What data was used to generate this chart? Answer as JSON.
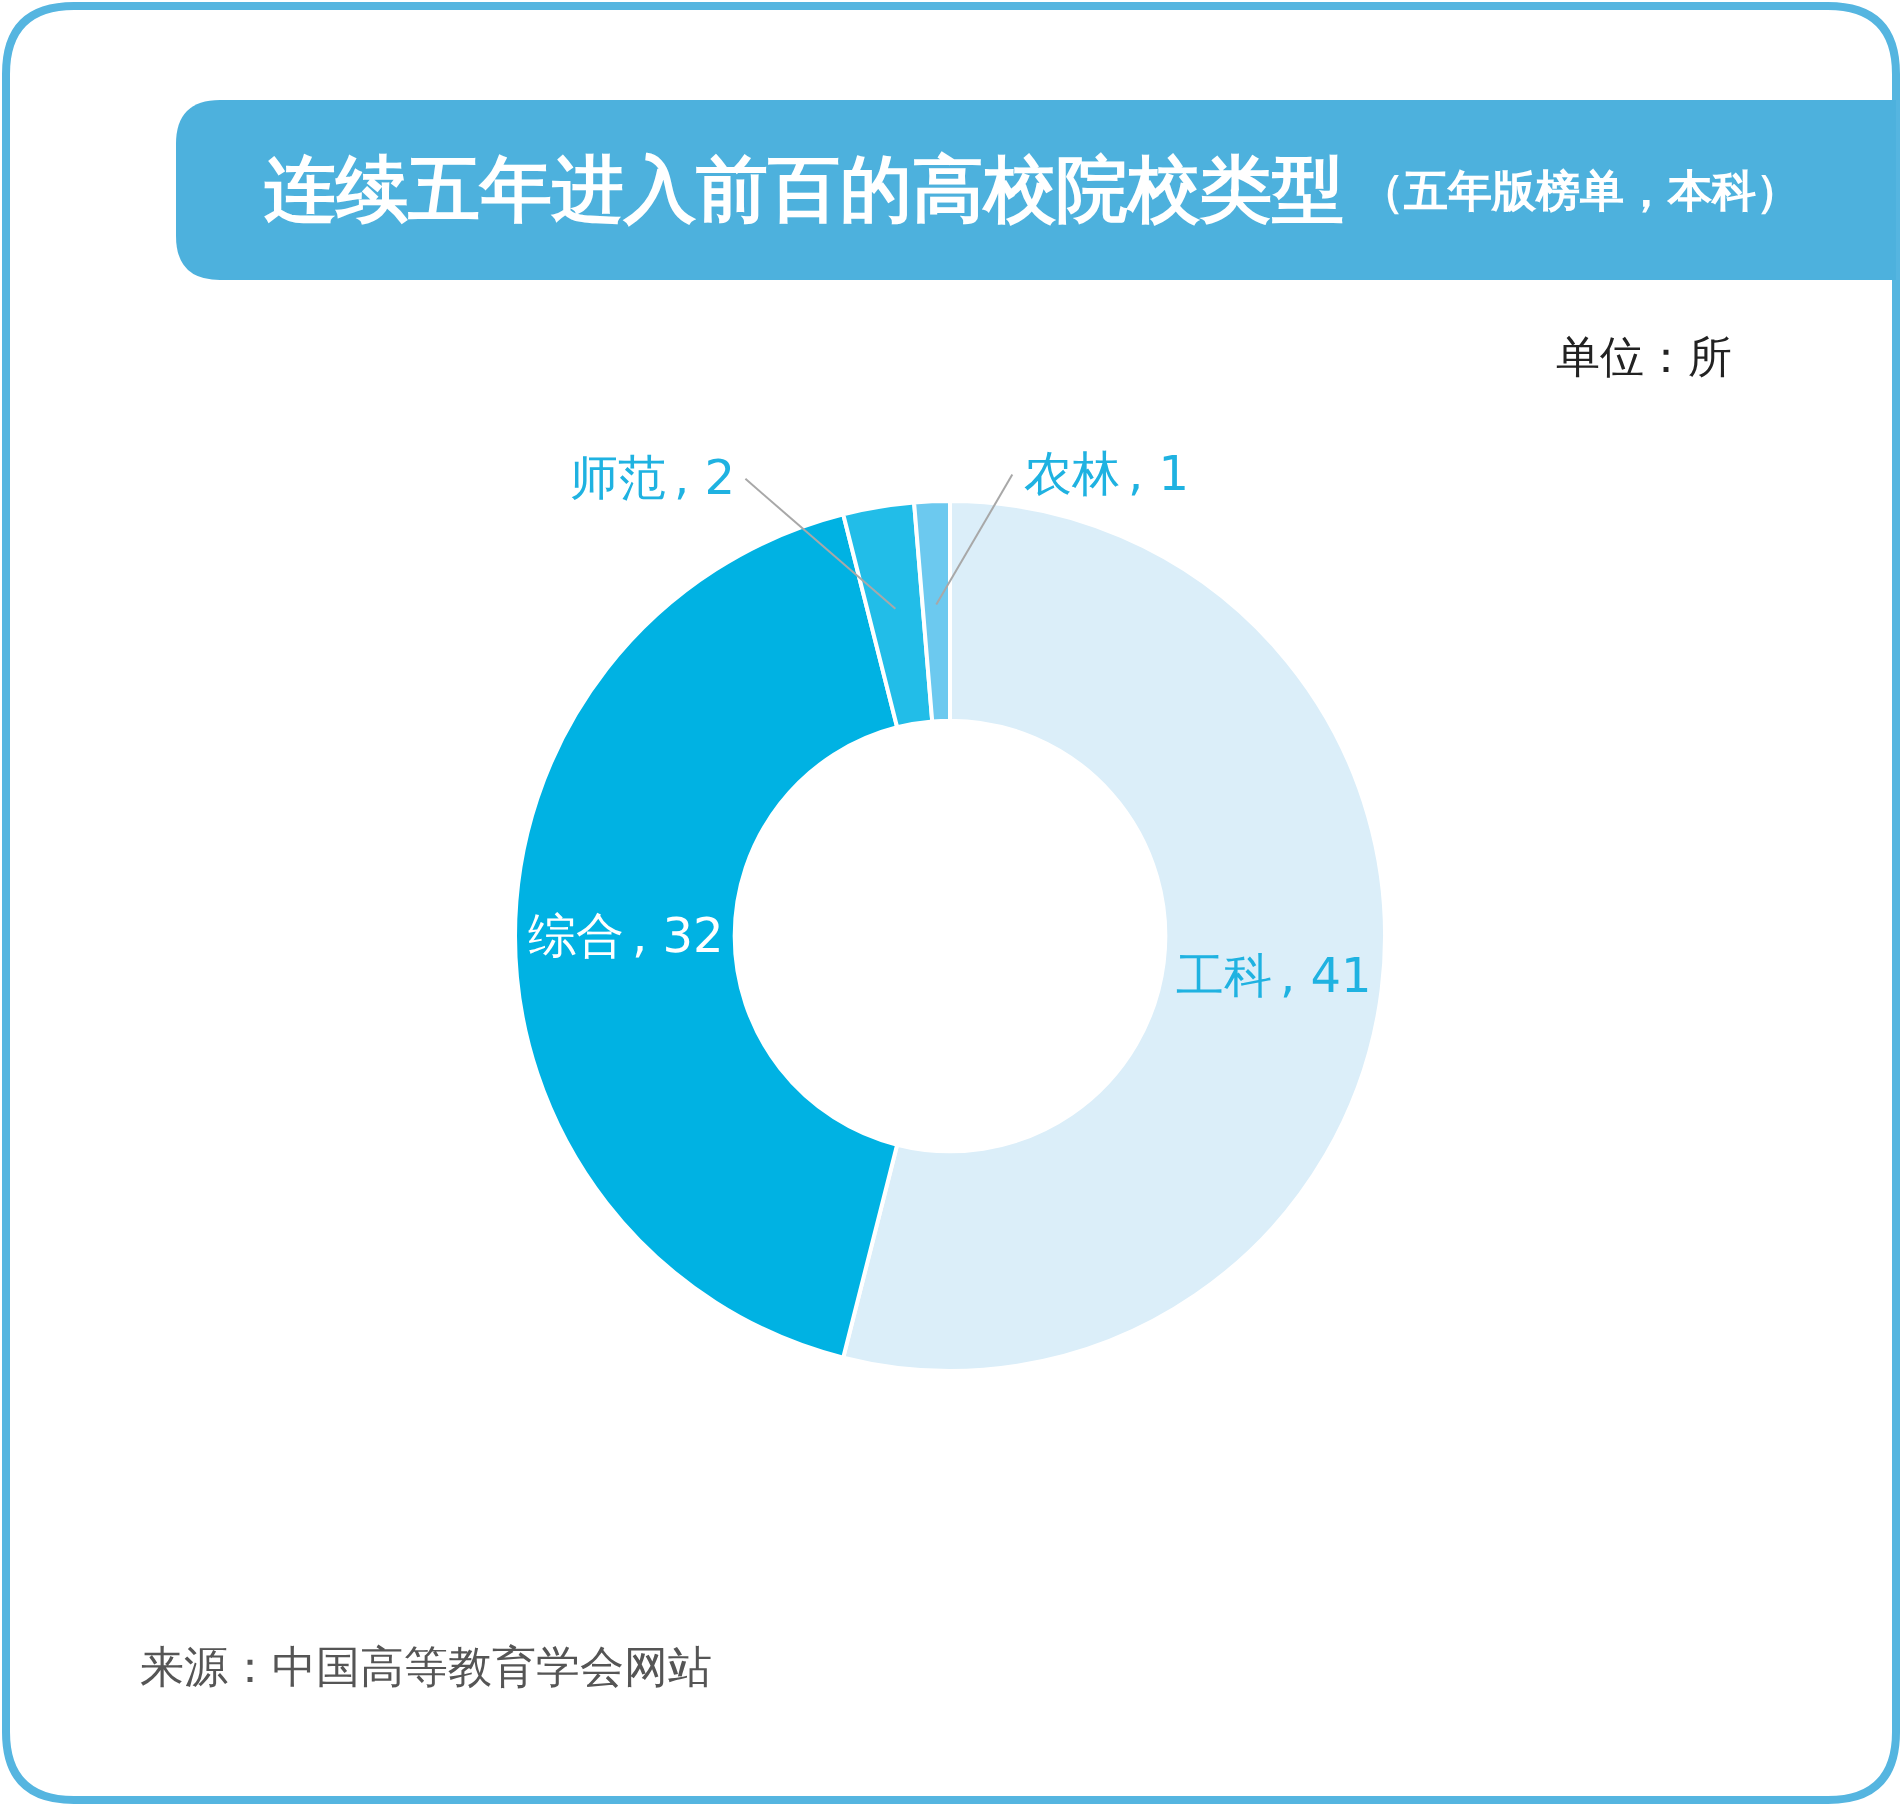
{
  "chart_data": {
    "type": "donut",
    "title": "连续五年进入前百的高校院校类型",
    "subtitle": "（五年版榜单，本科）",
    "categories": [
      "工科",
      "综合",
      "师范",
      "农林"
    ],
    "values": [
      41,
      32,
      2,
      1
    ],
    "value_labels": [
      ", 41",
      ", 32",
      ", 2",
      ", 1"
    ],
    "colors": [
      "#dbeef9",
      "#00b2e3",
      "#22bde8",
      "#6cc9ef"
    ],
    "legend": false,
    "annotations": [
      "单位：所",
      "来源：中国高等教育学会网站"
    ]
  }
}
